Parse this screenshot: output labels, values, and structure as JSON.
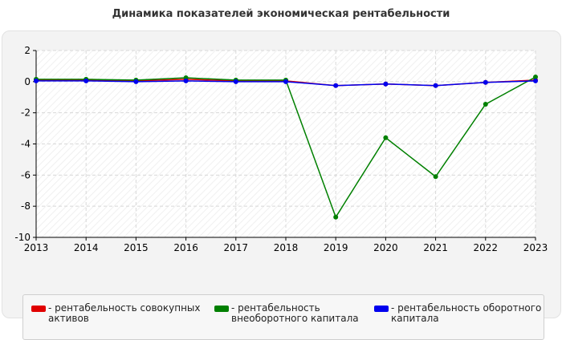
{
  "chart_data": {
    "type": "line",
    "title": "Динамика показателей экономическая рентабельности",
    "x": [
      "2013",
      "2014",
      "2015",
      "2016",
      "2017",
      "2018",
      "2019",
      "2020",
      "2021",
      "2022",
      "2023"
    ],
    "ylim": [
      -10,
      2
    ],
    "yticks": [
      2,
      0,
      -2,
      -4,
      -6,
      -8,
      -10
    ],
    "grid": true,
    "legend_position": "bottom",
    "series": [
      {
        "name": "рентабельность совокупных активов",
        "color": "#e00000",
        "values": [
          0.1,
          0.1,
          0.05,
          0.15,
          0.05,
          0.05,
          -0.25,
          -0.15,
          -0.25,
          -0.05,
          0.1
        ]
      },
      {
        "name": "рентабельность внеоборотного капитала",
        "color": "#008000",
        "values": [
          0.15,
          0.15,
          0.1,
          0.25,
          0.1,
          0.1,
          -8.7,
          -3.6,
          -6.1,
          -1.45,
          0.3
        ]
      },
      {
        "name": "рентабельность оборотного капитала",
        "color": "#0000ee",
        "values": [
          0.05,
          0.05,
          0.0,
          0.05,
          0.0,
          0.0,
          -0.25,
          -0.15,
          -0.25,
          -0.05,
          0.05
        ]
      }
    ]
  },
  "legend_items": [
    {
      "prefix": "- ",
      "label": "рентабельность совокупных активов"
    },
    {
      "prefix": "- ",
      "label": "рентабельность внеоборотного капитала"
    },
    {
      "prefix": "- ",
      "label": "рентабельность оборотного капитала"
    }
  ]
}
